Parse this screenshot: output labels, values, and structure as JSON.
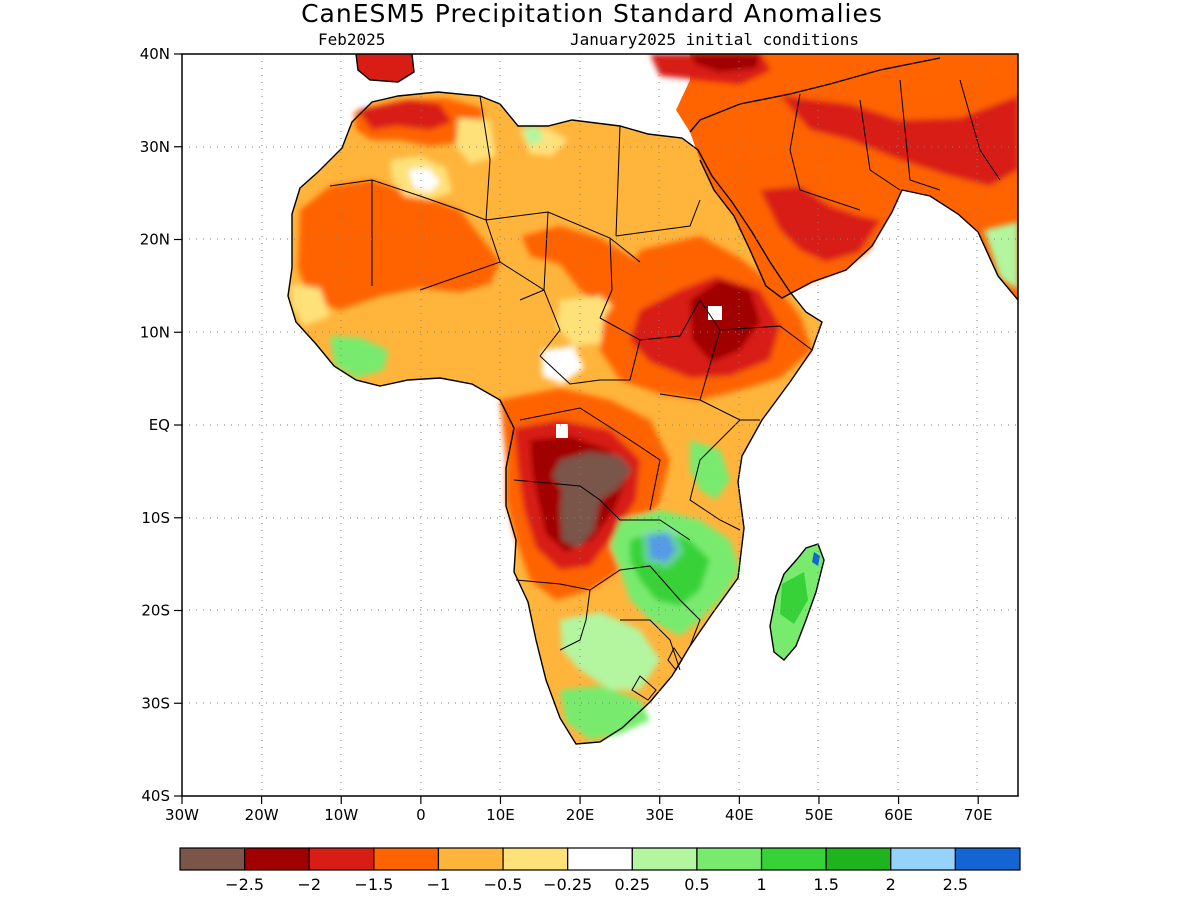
{
  "map": {
    "title": "CanESM5 Precipitation Standard Anomalies",
    "valid_period": "Feb2025",
    "init_label": "January2025 initial conditions",
    "lat_labels": [
      "40N",
      "30N",
      "20N",
      "10N",
      "EQ",
      "10S",
      "20S",
      "30S",
      "40S"
    ],
    "lon_labels": [
      "30W",
      "20W",
      "10W",
      "0",
      "10E",
      "20E",
      "30E",
      "40E",
      "50E",
      "60E",
      "70E"
    ],
    "extent": {
      "lon": [
        -30,
        75
      ],
      "lat": [
        -40,
        40
      ]
    }
  },
  "colorbar": {
    "colors": [
      "#7a5548",
      "#a00000",
      "#d81e14",
      "#ff6400",
      "#ffb43c",
      "#ffe17a",
      "#ffffff",
      "#b4f5a0",
      "#78eb6e",
      "#37d237",
      "#1eb41e",
      "#96d2fa",
      "#1464d2"
    ],
    "labels": [
      "−2.5",
      "−2",
      "−1.5",
      "−1",
      "−0.5",
      "−0.25",
      "0.25",
      "0.5",
      "1",
      "1.5",
      "2",
      "2.5"
    ]
  }
}
